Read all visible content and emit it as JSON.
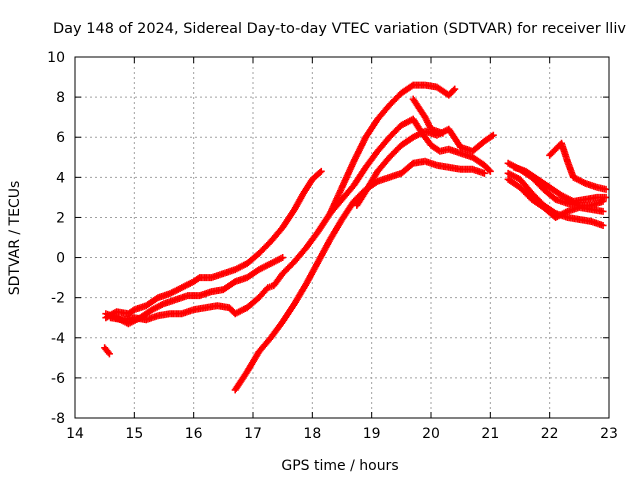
{
  "chart_data": {
    "type": "scatter",
    "title": "Day 148 of 2024, Sidereal Day-to-day VTEC variation (SDTVAR) for receiver lliv",
    "xlabel": "GPS time / hours",
    "ylabel": "SDTVAR / TECUs",
    "xlim": [
      14,
      23
    ],
    "ylim": [
      -8,
      10
    ],
    "xticks": [
      "14",
      "15",
      "16",
      "17",
      "18",
      "19",
      "20",
      "21",
      "22",
      "23"
    ],
    "yticks": [
      "-8",
      "-6",
      "-4",
      "-2",
      "0",
      "2",
      "4",
      "6",
      "8",
      "10"
    ],
    "grid": true,
    "marker": "+",
    "color": "#ff0000",
    "series": [
      {
        "name": "s1",
        "points": [
          [
            14.52,
            -3.0
          ],
          [
            14.7,
            -2.7
          ],
          [
            14.9,
            -2.8
          ],
          [
            15.0,
            -2.6
          ],
          [
            15.2,
            -2.4
          ],
          [
            15.4,
            -2.0
          ],
          [
            15.6,
            -1.8
          ],
          [
            15.8,
            -1.5
          ],
          [
            16.0,
            -1.2
          ],
          [
            16.1,
            -1.0
          ],
          [
            16.3,
            -1.0
          ],
          [
            16.5,
            -0.8
          ],
          [
            16.7,
            -0.6
          ],
          [
            16.9,
            -0.3
          ],
          [
            17.1,
            0.2
          ],
          [
            17.3,
            0.8
          ],
          [
            17.5,
            1.5
          ],
          [
            17.7,
            2.4
          ],
          [
            17.85,
            3.2
          ],
          [
            18.0,
            3.9
          ],
          [
            18.15,
            4.3
          ]
        ]
      },
      {
        "name": "s2",
        "points": [
          [
            14.52,
            -2.8
          ],
          [
            14.7,
            -3.0
          ],
          [
            14.9,
            -3.3
          ],
          [
            15.1,
            -3.0
          ],
          [
            15.3,
            -2.6
          ],
          [
            15.5,
            -2.3
          ],
          [
            15.7,
            -2.1
          ],
          [
            15.9,
            -1.9
          ],
          [
            16.1,
            -1.9
          ],
          [
            16.3,
            -1.7
          ],
          [
            16.5,
            -1.6
          ],
          [
            16.7,
            -1.2
          ],
          [
            16.9,
            -1.0
          ],
          [
            17.1,
            -0.6
          ],
          [
            17.3,
            -0.3
          ],
          [
            17.5,
            0.0
          ]
        ]
      },
      {
        "name": "s3",
        "points": [
          [
            14.6,
            -3.0
          ],
          [
            14.8,
            -3.1
          ],
          [
            15.0,
            -3.0
          ],
          [
            15.2,
            -3.1
          ],
          [
            15.4,
            -2.9
          ],
          [
            15.6,
            -2.8
          ],
          [
            15.8,
            -2.8
          ],
          [
            16.0,
            -2.6
          ],
          [
            16.2,
            -2.5
          ],
          [
            16.4,
            -2.4
          ],
          [
            16.6,
            -2.5
          ],
          [
            16.7,
            -2.8
          ],
          [
            16.9,
            -2.5
          ],
          [
            17.1,
            -2.0
          ],
          [
            17.25,
            -1.5
          ],
          [
            17.35,
            -1.4
          ],
          [
            17.5,
            -0.8
          ],
          [
            17.7,
            -0.2
          ],
          [
            17.9,
            0.5
          ],
          [
            18.1,
            1.3
          ],
          [
            18.3,
            2.2
          ],
          [
            18.5,
            2.9
          ],
          [
            18.7,
            3.6
          ],
          [
            18.9,
            4.5
          ],
          [
            19.1,
            5.3
          ],
          [
            19.3,
            6.0
          ],
          [
            19.5,
            6.6
          ],
          [
            19.7,
            6.9
          ],
          [
            19.85,
            6.2
          ],
          [
            20.0,
            5.6
          ],
          [
            20.15,
            5.3
          ],
          [
            20.3,
            5.4
          ],
          [
            20.5,
            5.2
          ],
          [
            20.7,
            5.0
          ],
          [
            20.9,
            4.6
          ],
          [
            21.0,
            4.3
          ]
        ]
      },
      {
        "name": "s4",
        "points": [
          [
            16.7,
            -6.6
          ],
          [
            16.9,
            -5.7
          ],
          [
            17.1,
            -4.7
          ],
          [
            17.3,
            -4.0
          ],
          [
            17.5,
            -3.2
          ],
          [
            17.7,
            -2.3
          ],
          [
            17.9,
            -1.3
          ],
          [
            18.1,
            -0.2
          ],
          [
            18.3,
            0.9
          ],
          [
            18.5,
            1.9
          ],
          [
            18.7,
            2.8
          ],
          [
            18.9,
            3.4
          ],
          [
            19.1,
            3.8
          ],
          [
            19.3,
            4.0
          ],
          [
            19.5,
            4.2
          ],
          [
            19.7,
            4.7
          ],
          [
            19.9,
            4.8
          ],
          [
            20.1,
            4.6
          ],
          [
            20.3,
            4.5
          ],
          [
            20.5,
            4.4
          ],
          [
            20.7,
            4.4
          ],
          [
            20.9,
            4.2
          ]
        ]
      },
      {
        "name": "s5",
        "points": [
          [
            18.3,
            2.2
          ],
          [
            18.5,
            3.5
          ],
          [
            18.7,
            4.8
          ],
          [
            18.9,
            6.0
          ],
          [
            19.1,
            6.9
          ],
          [
            19.3,
            7.6
          ],
          [
            19.5,
            8.2
          ],
          [
            19.7,
            8.6
          ],
          [
            19.9,
            8.6
          ],
          [
            20.1,
            8.5
          ],
          [
            20.3,
            8.1
          ],
          [
            20.4,
            8.4
          ]
        ]
      },
      {
        "name": "s6",
        "points": [
          [
            18.75,
            2.6
          ],
          [
            18.9,
            3.3
          ],
          [
            19.1,
            4.3
          ],
          [
            19.3,
            5.0
          ],
          [
            19.5,
            5.6
          ],
          [
            19.7,
            6.0
          ],
          [
            19.9,
            6.3
          ],
          [
            20.1,
            6.1
          ],
          [
            20.3,
            6.4
          ],
          [
            20.5,
            5.5
          ],
          [
            20.7,
            5.3
          ],
          [
            20.9,
            5.8
          ],
          [
            21.05,
            6.1
          ]
        ]
      },
      {
        "name": "s7",
        "points": [
          [
            19.7,
            7.9
          ],
          [
            19.9,
            7.0
          ],
          [
            20.0,
            6.4
          ],
          [
            20.2,
            6.2
          ]
        ]
      },
      {
        "name": "s8",
        "points": [
          [
            14.5,
            -4.5
          ],
          [
            14.58,
            -4.8
          ]
        ]
      },
      {
        "name": "s9",
        "points": [
          [
            21.3,
            4.7
          ],
          [
            21.5,
            4.4
          ],
          [
            21.7,
            4.0
          ],
          [
            21.9,
            3.4
          ],
          [
            22.1,
            2.9
          ],
          [
            22.3,
            2.7
          ],
          [
            22.5,
            2.6
          ],
          [
            22.7,
            2.6
          ],
          [
            22.9,
            2.8
          ]
        ]
      },
      {
        "name": "s10",
        "points": [
          [
            21.3,
            4.2
          ],
          [
            21.5,
            3.9
          ],
          [
            21.7,
            3.2
          ],
          [
            21.9,
            2.6
          ],
          [
            22.1,
            2.2
          ],
          [
            22.3,
            2.0
          ],
          [
            22.5,
            1.9
          ],
          [
            22.7,
            1.8
          ],
          [
            22.9,
            1.6
          ]
        ]
      },
      {
        "name": "s11",
        "points": [
          [
            21.3,
            3.9
          ],
          [
            21.5,
            3.5
          ],
          [
            21.7,
            2.9
          ],
          [
            21.9,
            2.5
          ],
          [
            22.1,
            2.0
          ],
          [
            22.3,
            2.3
          ],
          [
            22.5,
            2.5
          ],
          [
            22.7,
            2.4
          ],
          [
            22.9,
            2.3
          ]
        ]
      },
      {
        "name": "s12",
        "points": [
          [
            21.4,
            4.5
          ],
          [
            21.6,
            4.3
          ],
          [
            21.8,
            3.9
          ],
          [
            22.0,
            3.5
          ],
          [
            22.2,
            3.1
          ],
          [
            22.4,
            2.8
          ],
          [
            22.6,
            2.9
          ],
          [
            22.8,
            3.0
          ],
          [
            22.95,
            3.0
          ]
        ]
      },
      {
        "name": "s13",
        "points": [
          [
            22.0,
            5.1
          ],
          [
            22.2,
            5.7
          ],
          [
            22.3,
            4.8
          ],
          [
            22.4,
            4.0
          ],
          [
            22.6,
            3.7
          ],
          [
            22.8,
            3.5
          ],
          [
            22.95,
            3.4
          ]
        ]
      }
    ]
  }
}
